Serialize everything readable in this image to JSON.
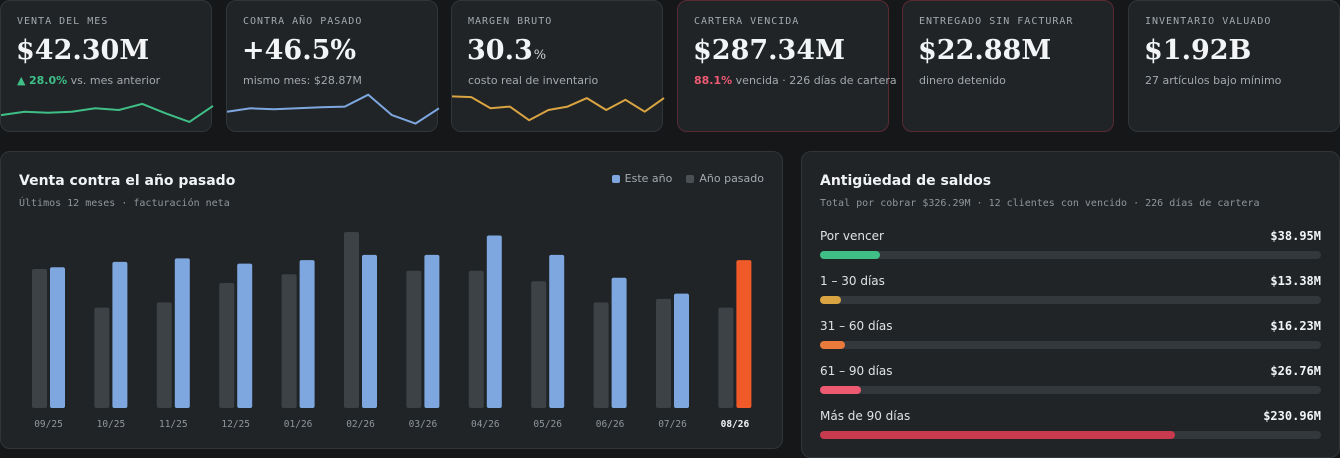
{
  "kpis": [
    {
      "label": "VENTA DEL MES",
      "value": "$42.30M",
      "unit": "",
      "sub_arrow": "▲",
      "sub_highlight": "28.0%",
      "sub_text": " vs. mes anterior",
      "spark_color": "#3fbf86",
      "spark": [
        0.35,
        0.45,
        0.42,
        0.45,
        0.55,
        0.5,
        0.68,
        0.4,
        0.15,
        0.62
      ]
    },
    {
      "label": "CONTRA AÑO PASADO",
      "value": "+46.5%",
      "unit": "",
      "sub_arrow": "",
      "sub_highlight": "",
      "sub_text": "mismo mes: $28.87M",
      "spark_color": "#7ea7e0",
      "spark": [
        0.45,
        0.55,
        0.52,
        0.55,
        0.58,
        0.6,
        0.95,
        0.35,
        0.1,
        0.55
      ]
    },
    {
      "label": "MARGEN BRUTO",
      "value": "30.3",
      "unit": "%",
      "sub_arrow": "",
      "sub_highlight": "",
      "sub_text": "costo real de inventario",
      "spark_color": "#d9a441",
      "spark": [
        0.9,
        0.88,
        0.55,
        0.6,
        0.2,
        0.5,
        0.6,
        0.85,
        0.5,
        0.8,
        0.45,
        0.85
      ]
    },
    {
      "label": "CARTERA VENCIDA",
      "value": "$287.34M",
      "unit": "",
      "sub_arrow": "",
      "sub_highlight": "88.1%",
      "sub_text": " vencida · 226 días de cartera",
      "spark_color": "",
      "spark": []
    },
    {
      "label": "ENTREGADO SIN FACTURAR",
      "value": "$22.88M",
      "unit": "",
      "sub_arrow": "",
      "sub_highlight": "",
      "sub_text": "dinero detenido",
      "spark_color": "",
      "spark": []
    },
    {
      "label": "INVENTARIO VALUADO",
      "value": "$1.92B",
      "unit": "",
      "sub_arrow": "",
      "sub_highlight": "",
      "sub_text": "27 artículos bajo mínimo",
      "spark_color": "",
      "spark": []
    }
  ],
  "sales_panel": {
    "title": "Venta contra el año pasado",
    "subtitle": "Últimos 12 meses · facturación neta",
    "legend": {
      "this_year": "Este año",
      "last_year": "Año pasado"
    }
  },
  "aging_panel": {
    "title": "Antigüedad de saldos",
    "subtitle": "Total por cobrar $326.29M · 12 clientes con vencido · 226 días de cartera",
    "rows": [
      {
        "label": "Por vencer",
        "amount": "$38.95M",
        "fraction": 0.12,
        "color": "#3fbf86"
      },
      {
        "label": "1 – 30 días",
        "amount": "$13.38M",
        "fraction": 0.041,
        "color": "#d9a441"
      },
      {
        "label": "31 – 60 días",
        "amount": "$16.23M",
        "fraction": 0.05,
        "color": "#ea7a3c"
      },
      {
        "label": "61 – 90 días",
        "amount": "$26.76M",
        "fraction": 0.082,
        "color": "#ef5a73"
      },
      {
        "label": "Más de 90 días",
        "amount": "$230.96M",
        "fraction": 0.708,
        "color": "#c83a4d"
      }
    ]
  },
  "colors": {
    "this_year": "#7ea7e0",
    "last_year": "#3d4246",
    "current": "#f05a28",
    "alert_border": "#5a2a33"
  },
  "chart_data": {
    "type": "bar",
    "categories": [
      "09/25",
      "10/25",
      "11/25",
      "12/25",
      "01/26",
      "02/26",
      "03/26",
      "04/26",
      "05/26",
      "06/26",
      "07/26",
      "08/26"
    ],
    "current_category": "08/26",
    "series": [
      {
        "name": "Año pasado",
        "values": [
          0.79,
          0.57,
          0.6,
          0.71,
          0.76,
          1.0,
          0.78,
          0.78,
          0.72,
          0.6,
          0.62,
          0.57
        ]
      },
      {
        "name": "Este año",
        "values": [
          0.8,
          0.83,
          0.85,
          0.82,
          0.84,
          0.87,
          0.87,
          0.98,
          0.87,
          0.74,
          0.65,
          0.84
        ]
      }
    ],
    "ylim": [
      0,
      1.0
    ],
    "grid": false,
    "legend": "top-right"
  }
}
